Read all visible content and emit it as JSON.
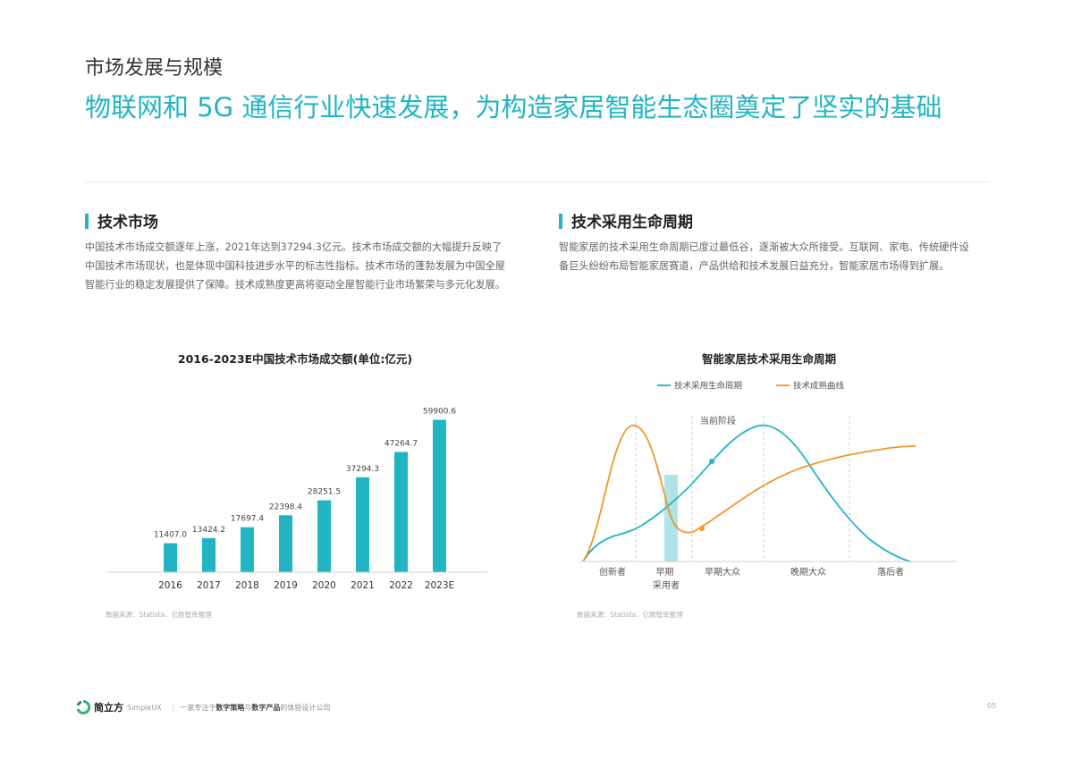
{
  "header": {
    "section": "市场发展与规模",
    "headline": "物联网和 5G 通信行业快速发展，为构造家居智能生态圈奠定了坚实的基础"
  },
  "left": {
    "title": "技术市场",
    "text": "中国技术市场成交额逐年上涨，2021年达到37294.3亿元。技术市场成交额的大幅提升反映了中国技术市场现状，也是体现中国科技进步水平的标志性指标。技术市场的蓬勃发展为中国全屋智能行业的稳定发展提供了保障。技术成熟度更高将驱动全屋智能行业市场繁荣与多元化发展。",
    "source": "数据来源：Statista，亿欧智库整理"
  },
  "right": {
    "title": "技术采用生命周期",
    "text": "智能家居的技术采用生命周期已度过最低谷，逐渐被大众所接受。互联网、家电、传统硬件设备巨头纷纷布局智能家居赛道，产品供给和技术发展日益充分，智能家居市场得到扩展。",
    "source": "数据来源：Statista，亿欧智库整理"
  },
  "colors": {
    "accent": "#21b5c2",
    "orange": "#f0962c"
  },
  "chart_data": [
    {
      "type": "bar",
      "title": "2016-2023E中国技术市场成交额(单位:亿元)",
      "categories": [
        "2016",
        "2017",
        "2018",
        "2019",
        "2020",
        "2021",
        "2022",
        "2023E"
      ],
      "values": [
        11407.0,
        13424.2,
        17697.4,
        22398.4,
        28251.5,
        37294.3,
        47264.7,
        59900.6
      ],
      "value_labels": [
        "11407.0",
        "13424.2",
        "17697.4",
        "22398.4",
        "28251.5",
        "37294.3",
        "47264.7",
        "59900.6"
      ],
      "ylim": [
        0,
        65000
      ],
      "grid": false
    },
    {
      "type": "line",
      "title": "智能家居技术采用生命周期",
      "legend_position": "top",
      "series": [
        {
          "name": "技术采用生命周期",
          "color": "#21b5c2"
        },
        {
          "name": "技术成熟曲线",
          "color": "#f0962c"
        }
      ],
      "stages": [
        "创新者",
        "早期\n采用者",
        "早期大众",
        "晚期大众",
        "落后者"
      ],
      "annotation": "当前阶段"
    }
  ],
  "footer": {
    "brand": "简立方",
    "brand_en": "SimpleUX",
    "slogan_pre": "一家专注于",
    "slogan_b1": "数字策略",
    "slogan_mid": "与",
    "slogan_b2": "数字产品",
    "slogan_post": "的体验设计公司"
  },
  "page_number": "05"
}
